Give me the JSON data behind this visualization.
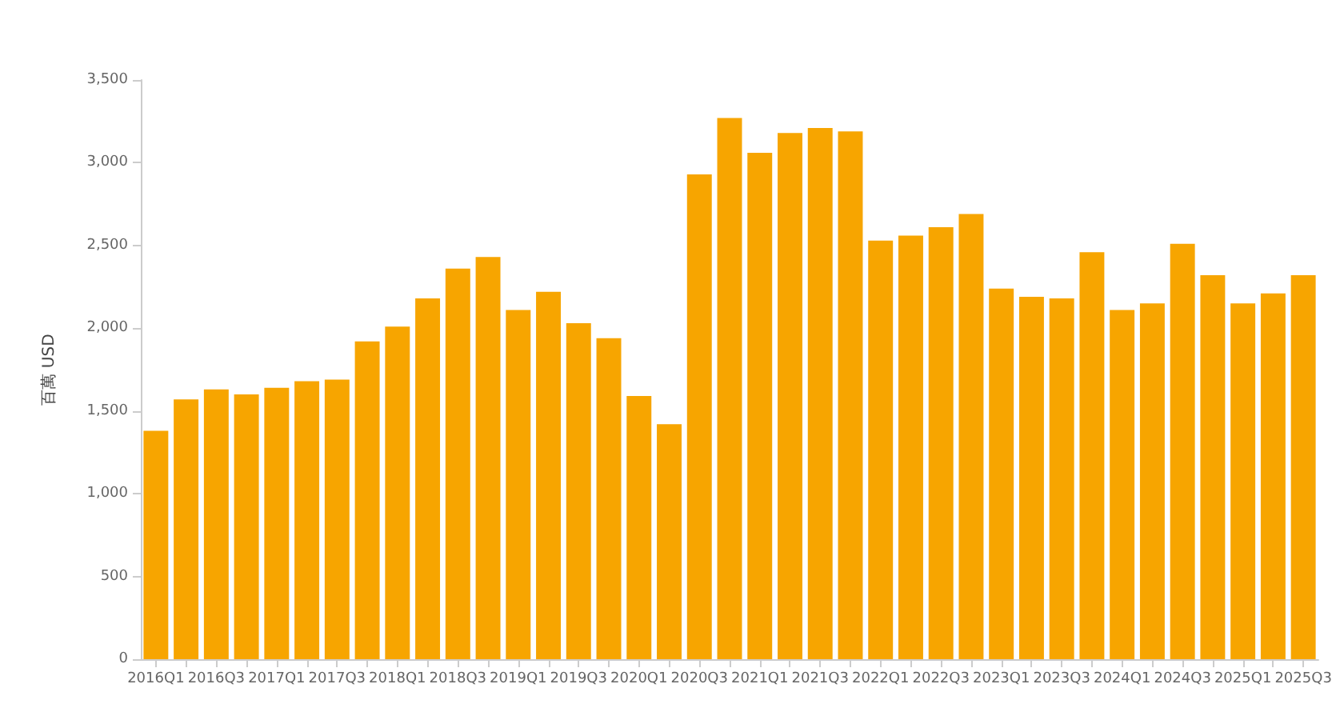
{
  "chart_data": {
    "type": "bar",
    "ylabel": "百萬 USD",
    "categories": [
      "2016Q1",
      null,
      "2016Q3",
      null,
      "2017Q1",
      null,
      "2017Q3",
      null,
      "2018Q1",
      null,
      "2018Q3",
      null,
      "2019Q1",
      null,
      "2019Q3",
      null,
      "2020Q1",
      null,
      "2020Q3",
      null,
      "2021Q1",
      null,
      "2021Q3",
      null,
      "2022Q1",
      null,
      "2022Q3",
      null,
      "2023Q1",
      null,
      "2023Q3",
      null,
      "2024Q1",
      null,
      "2024Q3",
      null,
      "2025Q1",
      null,
      "2025Q3"
    ],
    "values": [
      1380,
      1570,
      1630,
      1600,
      1640,
      1680,
      1690,
      1920,
      2010,
      2180,
      2360,
      2430,
      2110,
      2220,
      2030,
      1940,
      1590,
      1420,
      2930,
      3270,
      3060,
      3180,
      3210,
      3190,
      2530,
      2560,
      2610,
      2690,
      2240,
      2190,
      2180,
      2460,
      2110,
      2150,
      2510,
      2320,
      2150,
      2210,
      2320
    ],
    "color": "#f7a500",
    "ylim": [
      0,
      3500
    ],
    "yticks": [
      0,
      500,
      {
        "value": 1000,
        "label": "1,000"
      },
      {
        "value": 1500,
        "label": "1,500"
      },
      {
        "value": 2000,
        "label": "2,000"
      },
      {
        "value": 2500,
        "label": "2,500"
      },
      {
        "value": 3000,
        "label": "3,000"
      },
      {
        "value": 3500,
        "label": "3,500"
      }
    ],
    "grid": false
  }
}
